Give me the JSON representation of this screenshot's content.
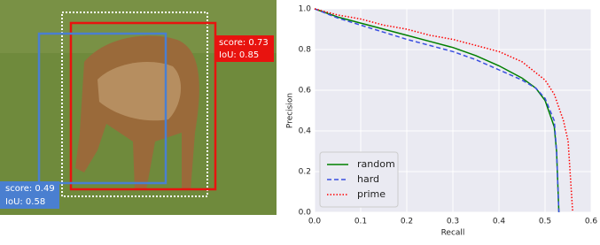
{
  "image": {
    "annotations": [
      {
        "lines": [
          "score: 0.73",
          "IoU: 0.85"
        ],
        "color": "#e8130f"
      },
      {
        "lines": [
          "score: 0.49",
          "IoU: 0.58"
        ],
        "color": "#4a7fd0"
      }
    ]
  },
  "chart_data": {
    "type": "line",
    "xlabel": "Recall",
    "ylabel": "Precision",
    "xlim": [
      0,
      0.6
    ],
    "ylim": [
      0,
      1
    ],
    "xticks": [
      {
        "value": 0,
        "label": "0.0"
      },
      0.1,
      0.2,
      0.3,
      0.4,
      0.5,
      0.6
    ],
    "yticks": [
      {
        "value": 0,
        "label": "0.0"
      },
      0.2,
      0.4,
      0.6,
      0.8,
      {
        "value": 1,
        "label": "1.0"
      }
    ],
    "grid": true,
    "legend": "lower left",
    "series": [
      {
        "name": "random",
        "color": "#007f00",
        "dash": "solid",
        "x": [
          0,
          0.05,
          0.1,
          0.15,
          0.2,
          0.25,
          0.3,
          0.35,
          0.4,
          0.45,
          0.48,
          0.5,
          0.52,
          0.525,
          0.53
        ],
        "values": [
          1.0,
          0.96,
          0.93,
          0.9,
          0.87,
          0.84,
          0.81,
          0.77,
          0.72,
          0.66,
          0.61,
          0.55,
          0.42,
          0.3,
          0.0
        ]
      },
      {
        "name": "hard",
        "color": "#3a4fe0",
        "dash": "dashed",
        "x": [
          0,
          0.05,
          0.1,
          0.15,
          0.2,
          0.25,
          0.3,
          0.35,
          0.4,
          0.45,
          0.48,
          0.5,
          0.52,
          0.525,
          0.53
        ],
        "values": [
          1.0,
          0.955,
          0.92,
          0.885,
          0.85,
          0.82,
          0.79,
          0.75,
          0.7,
          0.65,
          0.61,
          0.56,
          0.45,
          0.3,
          0.0
        ]
      },
      {
        "name": "prime",
        "color": "#ff0000",
        "dash": "dotted",
        "x": [
          0,
          0.05,
          0.1,
          0.15,
          0.2,
          0.25,
          0.3,
          0.35,
          0.4,
          0.45,
          0.5,
          0.52,
          0.54,
          0.55,
          0.56
        ],
        "values": [
          1.0,
          0.97,
          0.95,
          0.92,
          0.9,
          0.87,
          0.85,
          0.82,
          0.79,
          0.74,
          0.65,
          0.58,
          0.45,
          0.35,
          0.0
        ]
      }
    ]
  }
}
